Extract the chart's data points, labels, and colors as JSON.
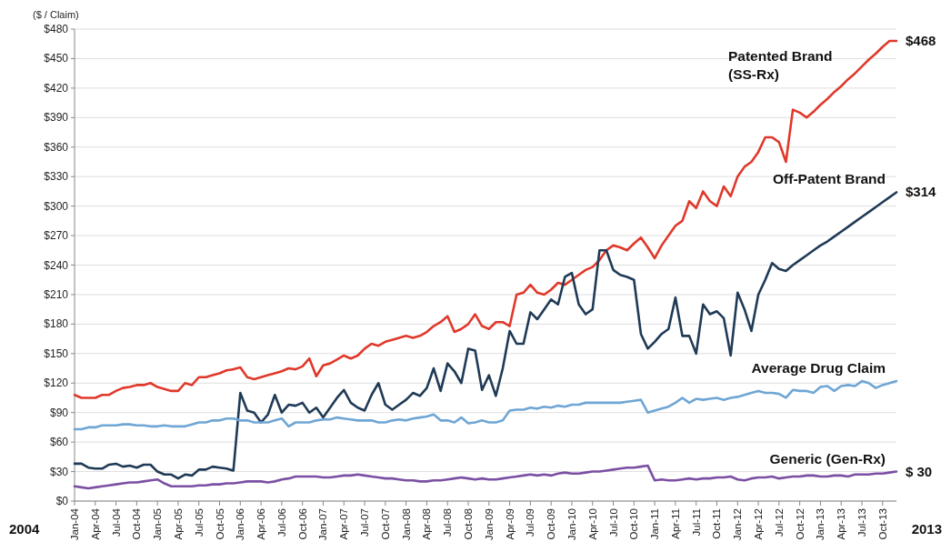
{
  "chart_data": {
    "type": "line",
    "ylabel": "($ / Claim)",
    "categories": [
      "Jan-04",
      null,
      null,
      "Apr-04",
      null,
      null,
      "Jul-04",
      null,
      null,
      "Oct-04",
      null,
      null,
      "Jan-05",
      null,
      null,
      "Apr-05",
      null,
      null,
      "Jul-05",
      null,
      null,
      "Oct-05",
      null,
      null,
      "Jan-06",
      null,
      null,
      "Apr-06",
      null,
      null,
      "Jul-06",
      null,
      null,
      "Oct-06",
      null,
      null,
      "Jan-07",
      null,
      null,
      "Apr-07",
      null,
      null,
      "Jul-07",
      null,
      null,
      "Oct-07",
      null,
      null,
      "Jan-08",
      null,
      null,
      "Apr-08",
      null,
      null,
      "Jul-08",
      null,
      null,
      "Oct-08",
      null,
      null,
      "Jan-09",
      null,
      null,
      "Apr-09",
      null,
      null,
      "Jul-09",
      null,
      null,
      "Oct-09",
      null,
      null,
      "Jan-10",
      null,
      null,
      "Apr-10",
      null,
      null,
      "Jul-10",
      null,
      null,
      "Oct-10",
      null,
      null,
      "Jan-11",
      null,
      null,
      "Apr-11",
      null,
      null,
      "Jul-11",
      null,
      null,
      "Oct-11",
      null,
      null,
      "Jan-12",
      null,
      null,
      "Apr-12",
      null,
      null,
      "Jul-12",
      null,
      null,
      "Oct-12",
      null,
      null,
      "Jan-13",
      null,
      null,
      "Apr-13",
      null,
      null,
      "Jul-13",
      null,
      null,
      "Oct-13",
      null,
      null
    ],
    "series": [
      {
        "name": "Patented Brand (SS-Rx)",
        "color": "#e0392b",
        "values": [
          108,
          105,
          105,
          105,
          108,
          108,
          112,
          115,
          116,
          118,
          118,
          120,
          116,
          114,
          112,
          112,
          120,
          118,
          126,
          126,
          128,
          130,
          133,
          134,
          136,
          126,
          124,
          126,
          128,
          130,
          132,
          135,
          134,
          137,
          145,
          127,
          138,
          140,
          144,
          148,
          145,
          148,
          155,
          160,
          158,
          162,
          164,
          166,
          168,
          166,
          168,
          172,
          178,
          182,
          188,
          172,
          175,
          180,
          190,
          178,
          175,
          182,
          182,
          178,
          210,
          212,
          220,
          212,
          210,
          215,
          222,
          220,
          225,
          230,
          235,
          238,
          245,
          255,
          260,
          258,
          255,
          262,
          268,
          258,
          247,
          260,
          270,
          280,
          285,
          305,
          298,
          315,
          305,
          300,
          320,
          310,
          330,
          340,
          345,
          355,
          370,
          370,
          365,
          345,
          398,
          395,
          390,
          396,
          403,
          409,
          416,
          422,
          429,
          435,
          442,
          449,
          455,
          462,
          468,
          468
        ],
        "value_labels": [
          null,
          null,
          null,
          null,
          null,
          null,
          null,
          null,
          null,
          null,
          null,
          null,
          null,
          null,
          null,
          null,
          null,
          null,
          null,
          null,
          null,
          null,
          null,
          null,
          null,
          null,
          null,
          null,
          null,
          null,
          null,
          null,
          null,
          null,
          null,
          null,
          null,
          null,
          null,
          null,
          null,
          null,
          null,
          null,
          null,
          null,
          null,
          null,
          null,
          null,
          null,
          null,
          null,
          null,
          null,
          null,
          null,
          null,
          null,
          null,
          null,
          null,
          null,
          null,
          null,
          null,
          null,
          null,
          null,
          null,
          null,
          null,
          null,
          null,
          null,
          null,
          null,
          null,
          null,
          null,
          null,
          null,
          null,
          null,
          null,
          null,
          null,
          null,
          null,
          null,
          null,
          null,
          null,
          null,
          null,
          null,
          null,
          null,
          null,
          null,
          null,
          null,
          null,
          null,
          null,
          null,
          null,
          null,
          null,
          null,
          null,
          null,
          null,
          null,
          null,
          null,
          null,
          null,
          null,
          "$468"
        ]
      },
      {
        "name": "Off-Patent Brand",
        "color": "#1f3a56",
        "values": [
          38,
          38,
          34,
          33,
          33,
          37,
          38,
          35,
          36,
          34,
          37,
          37,
          30,
          27,
          27,
          23,
          27,
          26,
          32,
          32,
          35,
          34,
          33,
          31,
          110,
          92,
          90,
          80,
          88,
          108,
          90,
          98,
          97,
          100,
          90,
          95,
          85,
          95,
          105,
          113,
          100,
          95,
          92,
          108,
          120,
          98,
          93,
          98,
          103,
          110,
          107,
          115,
          135,
          112,
          140,
          132,
          120,
          155,
          153,
          113,
          128,
          107,
          135,
          173,
          160,
          160,
          192,
          185,
          195,
          205,
          200,
          228,
          232,
          200,
          190,
          195,
          255,
          255,
          235,
          230,
          228,
          225,
          170,
          155,
          162,
          170,
          175,
          207,
          168,
          168,
          150,
          200,
          190,
          193,
          186,
          148,
          212,
          195,
          173,
          210,
          225,
          242,
          236,
          234,
          240,
          245,
          250,
          255,
          260,
          264,
          269,
          274,
          279,
          284,
          289,
          294,
          299,
          304,
          309,
          314
        ],
        "value_labels": [
          null,
          null,
          null,
          null,
          null,
          null,
          null,
          null,
          null,
          null,
          null,
          null,
          null,
          null,
          null,
          null,
          null,
          null,
          null,
          null,
          null,
          null,
          null,
          null,
          null,
          null,
          null,
          null,
          null,
          null,
          null,
          null,
          null,
          null,
          null,
          null,
          null,
          null,
          null,
          null,
          null,
          null,
          null,
          null,
          null,
          null,
          null,
          null,
          null,
          null,
          null,
          null,
          null,
          null,
          null,
          null,
          null,
          null,
          null,
          null,
          null,
          null,
          null,
          null,
          null,
          null,
          null,
          null,
          null,
          null,
          null,
          null,
          null,
          null,
          null,
          null,
          null,
          null,
          null,
          null,
          null,
          null,
          null,
          null,
          null,
          null,
          null,
          null,
          null,
          null,
          null,
          null,
          null,
          null,
          null,
          null,
          null,
          null,
          null,
          null,
          null,
          null,
          null,
          null,
          null,
          null,
          null,
          null,
          null,
          null,
          null,
          null,
          null,
          null,
          null,
          null,
          null,
          null,
          null,
          "$314"
        ]
      },
      {
        "name": "Average Drug Claim",
        "color": "#6fa6d4",
        "values": [
          73,
          73,
          75,
          75,
          77,
          77,
          77,
          78,
          78,
          77,
          77,
          76,
          76,
          77,
          76,
          76,
          76,
          78,
          80,
          80,
          82,
          82,
          84,
          84,
          82,
          82,
          80,
          80,
          80,
          82,
          84,
          76,
          80,
          80,
          80,
          82,
          83,
          83,
          85,
          84,
          83,
          82,
          82,
          82,
          80,
          80,
          82,
          83,
          82,
          84,
          85,
          86,
          88,
          82,
          82,
          80,
          85,
          79,
          80,
          82,
          80,
          80,
          82,
          92,
          93,
          93,
          95,
          94,
          96,
          95,
          97,
          96,
          98,
          98,
          100,
          100,
          100,
          100,
          100,
          100,
          101,
          102,
          103,
          90,
          92,
          94,
          96,
          100,
          105,
          100,
          104,
          103,
          104,
          105,
          103,
          105,
          106,
          108,
          110,
          112,
          110,
          110,
          109,
          105,
          113,
          112,
          112,
          110,
          116,
          117,
          112,
          117,
          118,
          117,
          122,
          120,
          115,
          118,
          120,
          122
        ]
      },
      {
        "name": "Generic (Gen-Rx)",
        "color": "#7b4fa3",
        "values": [
          15,
          14,
          13,
          14,
          15,
          16,
          17,
          18,
          19,
          19,
          20,
          21,
          22,
          18,
          15,
          15,
          15,
          15,
          16,
          16,
          17,
          17,
          18,
          18,
          19,
          20,
          20,
          20,
          19,
          20,
          22,
          23,
          25,
          25,
          25,
          25,
          24,
          24,
          25,
          26,
          26,
          27,
          26,
          25,
          24,
          23,
          23,
          22,
          21,
          21,
          20,
          20,
          21,
          21,
          22,
          23,
          24,
          23,
          22,
          23,
          22,
          22,
          23,
          24,
          25,
          26,
          27,
          26,
          27,
          26,
          28,
          29,
          28,
          28,
          29,
          30,
          30,
          31,
          32,
          33,
          34,
          34,
          35,
          36,
          21,
          22,
          21,
          21,
          22,
          23,
          22,
          23,
          23,
          24,
          24,
          25,
          22,
          21,
          23,
          24,
          24,
          25,
          23,
          24,
          25,
          25,
          26,
          26,
          25,
          25,
          26,
          26,
          25,
          27,
          27,
          27,
          28,
          28,
          29,
          30
        ],
        "value_labels": [
          null,
          null,
          null,
          null,
          null,
          null,
          null,
          null,
          null,
          null,
          null,
          null,
          null,
          null,
          null,
          null,
          null,
          null,
          null,
          null,
          null,
          null,
          null,
          null,
          null,
          null,
          null,
          null,
          null,
          null,
          null,
          null,
          null,
          null,
          null,
          null,
          null,
          null,
          null,
          null,
          null,
          null,
          null,
          null,
          null,
          null,
          null,
          null,
          null,
          null,
          null,
          null,
          null,
          null,
          null,
          null,
          null,
          null,
          null,
          null,
          null,
          null,
          null,
          null,
          null,
          null,
          null,
          null,
          null,
          null,
          null,
          null,
          null,
          null,
          null,
          null,
          null,
          null,
          null,
          null,
          null,
          null,
          null,
          null,
          null,
          null,
          null,
          null,
          null,
          null,
          null,
          null,
          null,
          null,
          null,
          null,
          null,
          null,
          null,
          null,
          null,
          null,
          null,
          null,
          null,
          null,
          null,
          null,
          null,
          null,
          null,
          null,
          null,
          null,
          null,
          null,
          null,
          null,
          null,
          "$ 30"
        ]
      }
    ],
    "ylim": [
      0,
      480
    ],
    "yticks": [
      {
        "value": 0,
        "label": "$0"
      },
      {
        "value": 30,
        "label": "$30"
      },
      {
        "value": 60,
        "label": "$60"
      },
      {
        "value": 90,
        "label": "$90"
      },
      {
        "value": 120,
        "label": "$120"
      },
      {
        "value": 150,
        "label": "$150"
      },
      {
        "value": 180,
        "label": "$180"
      },
      {
        "value": 210,
        "label": "$210"
      },
      {
        "value": 240,
        "label": "$240"
      },
      {
        "value": 270,
        "label": "$270"
      },
      {
        "value": 300,
        "label": "$300"
      },
      {
        "value": 330,
        "label": "$330"
      },
      {
        "value": 360,
        "label": "$360"
      },
      {
        "value": 390,
        "label": "$390"
      },
      {
        "value": 420,
        "label": "$420"
      },
      {
        "value": 450,
        "label": "$450"
      },
      {
        "value": 480,
        "label": "$480"
      }
    ],
    "grid": "y",
    "legend": false,
    "line_style": "solid",
    "marker": "none",
    "annotations": [
      "2004",
      "2013"
    ]
  }
}
